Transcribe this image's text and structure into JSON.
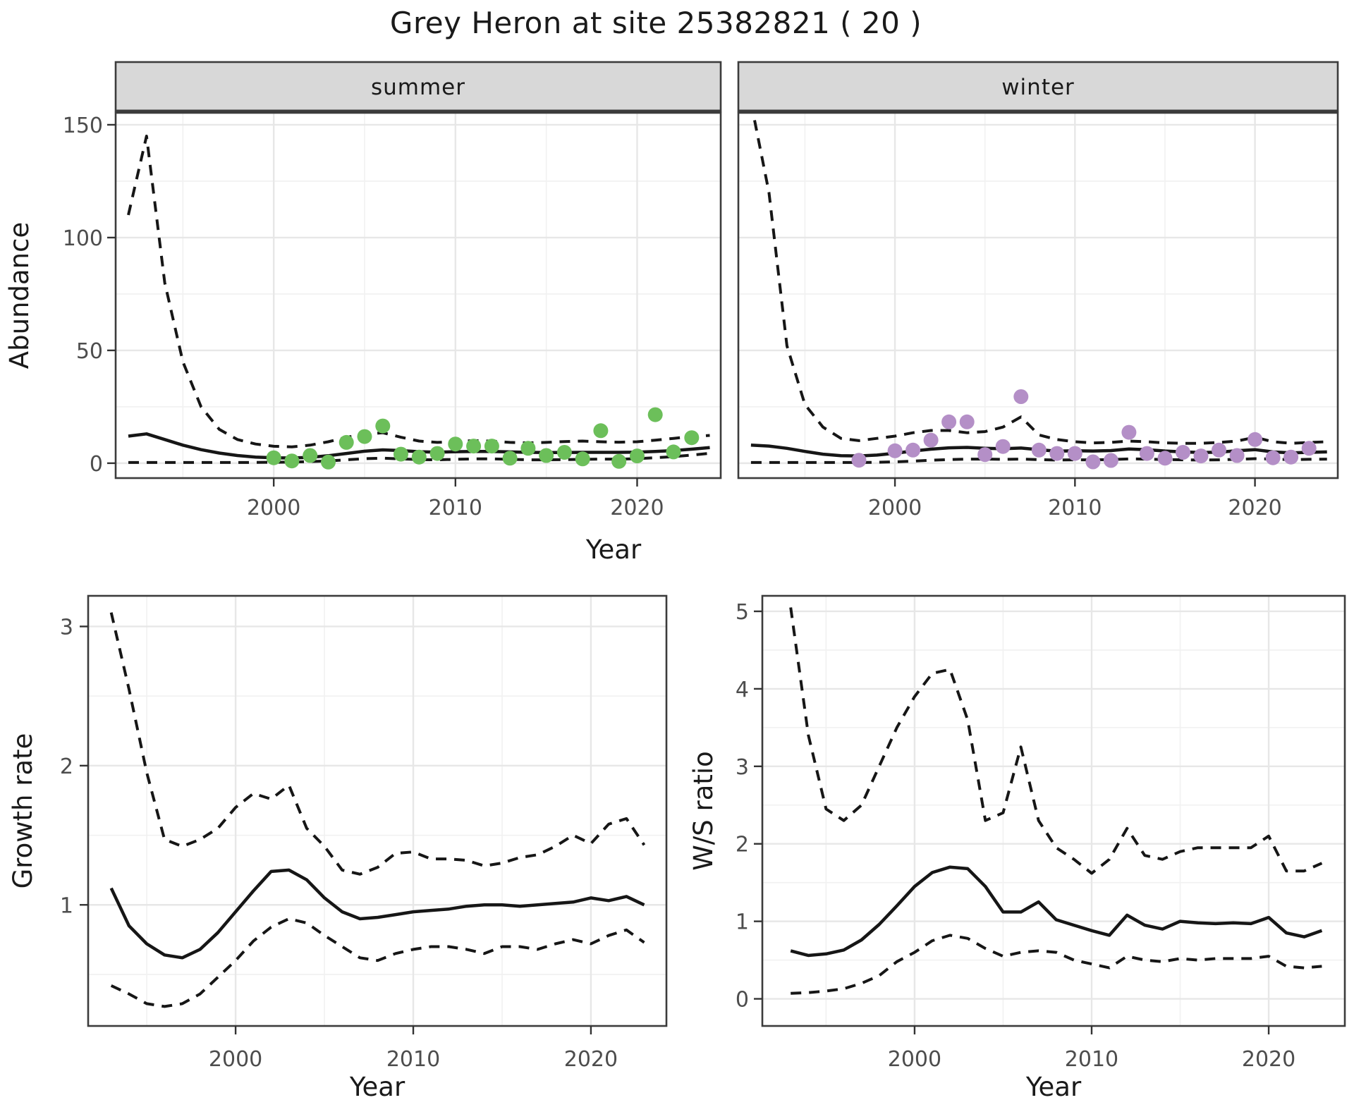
{
  "title": "Grey Heron at site 25382821 ( 20 )",
  "colors": {
    "summer_point": "#6cbf5a",
    "winter_point": "#b48fc7",
    "line": "#161616",
    "strip_bg": "#d8d8d8",
    "panel_border": "#3c3c3c",
    "grid_major": "#e7e7e7",
    "grid_minor": "#f1f1f1",
    "axis_text": "#4d4d4d"
  },
  "chart_data": [
    {
      "id": "abundance",
      "type": "line",
      "xlabel": "Year",
      "ylabel": "Abundance",
      "yticks": [
        0,
        50,
        100,
        150
      ],
      "xticks": [
        2000,
        2010,
        2020
      ],
      "xlim": [
        1991.3,
        2024.6
      ],
      "ylim": [
        -6.6,
        155.3
      ],
      "line_years": [
        1992,
        1993,
        1994,
        1995,
        1996,
        1997,
        1998,
        1999,
        2000,
        2001,
        2002,
        2003,
        2004,
        2005,
        2006,
        2007,
        2008,
        2009,
        2010,
        2011,
        2012,
        2013,
        2014,
        2015,
        2016,
        2017,
        2018,
        2019,
        2020,
        2021,
        2022,
        2023,
        2024
      ],
      "facets": [
        {
          "label": "summer",
          "point_color": "summer_point",
          "fit": [
            12,
            13,
            10.5,
            8,
            6,
            4.5,
            3.4,
            2.7,
            2.4,
            2.3,
            2.6,
            3.3,
            4.3,
            5.3,
            5.9,
            5.6,
            5.1,
            4.9,
            5.1,
            5.2,
            5.2,
            5.0,
            4.8,
            4.7,
            4.7,
            4.8,
            4.8,
            4.8,
            4.9,
            5.2,
            5.6,
            6.2,
            6.9
          ],
          "upper": [
            110,
            145,
            80,
            45,
            25,
            15,
            10.5,
            8.5,
            7.5,
            7.2,
            8,
            9.5,
            11.5,
            12.8,
            13.5,
            11.5,
            9.8,
            9.2,
            9.6,
            10,
            9.8,
            9.2,
            9,
            9.2,
            9.6,
            9.8,
            9.5,
            9.3,
            9.5,
            10.2,
            11,
            11.8,
            12.3
          ],
          "lower": [
            0.3,
            0.3,
            0.3,
            0.3,
            0.3,
            0.3,
            0.3,
            0.35,
            0.4,
            0.5,
            0.7,
            1.0,
            1.5,
            2.0,
            2.2,
            1.9,
            1.6,
            1.5,
            1.7,
            1.9,
            1.9,
            1.7,
            1.5,
            1.5,
            1.6,
            1.7,
            1.8,
            1.8,
            2.0,
            2.4,
            2.9,
            3.6,
            4.4
          ],
          "points": {
            "years": [
              2000,
              2001,
              2002,
              2003,
              2004,
              2005,
              2006,
              2007,
              2008,
              2009,
              2010,
              2011,
              2012,
              2013,
              2014,
              2015,
              2016,
              2017,
              2018,
              2019,
              2020,
              2021,
              2022,
              2023
            ],
            "values": [
              2.4,
              1.0,
              3.4,
              0.5,
              9.2,
              11.8,
              16.5,
              4.0,
              2.7,
              4.3,
              8.5,
              7.6,
              7.6,
              2.2,
              6.6,
              3.4,
              4.8,
              1.9,
              14.4,
              0.8,
              3.2,
              21.5,
              5.0,
              11.3
            ]
          }
        },
        {
          "label": "winter",
          "point_color": "winter_point",
          "fit": [
            8,
            7.6,
            6.6,
            5.2,
            4.0,
            3.3,
            3.2,
            3.6,
            4.4,
            5.4,
            6.2,
            6.8,
            7.0,
            6.6,
            6.4,
            6.7,
            6.0,
            5.3,
            5.5,
            5.4,
            5.6,
            6.3,
            6.0,
            5.4,
            5.0,
            4.7,
            4.9,
            5.5,
            6.0,
            5.0,
            4.6,
            4.8,
            5.0
          ],
          "upper": [
            160,
            120,
            52,
            26,
            16,
            11,
            10,
            11,
            12,
            13.5,
            14.5,
            14.5,
            13.5,
            14,
            16,
            20.5,
            12.5,
            10.5,
            9.5,
            9,
            9.2,
            9.8,
            9.5,
            9,
            8.8,
            8.8,
            9.2,
            9.8,
            11.5,
            9.5,
            8.8,
            9.2,
            9.5
          ],
          "lower": [
            0.3,
            0.3,
            0.3,
            0.3,
            0.3,
            0.3,
            0.3,
            0.4,
            0.6,
            0.9,
            1.3,
            1.6,
            1.8,
            1.8,
            1.7,
            1.8,
            1.6,
            1.4,
            1.5,
            1.5,
            1.6,
            1.9,
            1.8,
            1.6,
            1.5,
            1.4,
            1.5,
            1.7,
            2.0,
            1.8,
            1.6,
            1.7,
            1.8
          ],
          "points": {
            "years": [
              1998,
              2000,
              2001,
              2002,
              2003,
              2004,
              2005,
              2006,
              2007,
              2008,
              2009,
              2010,
              2011,
              2012,
              2013,
              2014,
              2015,
              2016,
              2017,
              2018,
              2019,
              2020,
              2021,
              2022,
              2023
            ],
            "values": [
              1.3,
              5.5,
              5.8,
              10.2,
              18.3,
              18.3,
              3.8,
              7.4,
              29.5,
              5.8,
              4.3,
              4.3,
              0.6,
              1.2,
              13.7,
              4.3,
              2.2,
              4.8,
              3.2,
              5.8,
              3.4,
              10.5,
              2.4,
              2.7,
              6.6
            ]
          }
        }
      ]
    },
    {
      "id": "growth",
      "type": "line",
      "xlabel": "Year",
      "ylabel": "Growth rate",
      "yticks": [
        1,
        2,
        3
      ],
      "xticks": [
        2000,
        2010,
        2020
      ],
      "xlim": [
        1991.7,
        2024.25
      ],
      "ylim": [
        0.13,
        3.22
      ],
      "line_years": [
        1993,
        1994,
        1995,
        1996,
        1997,
        1998,
        1999,
        2000,
        2001,
        2002,
        2003,
        2004,
        2005,
        2006,
        2007,
        2008,
        2009,
        2010,
        2011,
        2012,
        2013,
        2014,
        2015,
        2016,
        2017,
        2018,
        2019,
        2020,
        2021,
        2022,
        2023
      ],
      "facets": [
        {
          "label": null,
          "fit": [
            1.12,
            0.85,
            0.72,
            0.64,
            0.62,
            0.68,
            0.8,
            0.95,
            1.1,
            1.24,
            1.25,
            1.18,
            1.05,
            0.95,
            0.9,
            0.91,
            0.93,
            0.95,
            0.96,
            0.97,
            0.99,
            1.0,
            1.0,
            0.99,
            1.0,
            1.01,
            1.02,
            1.05,
            1.03,
            1.06,
            1.0
          ],
          "upper": [
            3.1,
            2.55,
            1.95,
            1.47,
            1.42,
            1.47,
            1.55,
            1.7,
            1.8,
            1.76,
            1.86,
            1.55,
            1.42,
            1.25,
            1.22,
            1.27,
            1.37,
            1.38,
            1.33,
            1.33,
            1.32,
            1.28,
            1.3,
            1.34,
            1.36,
            1.42,
            1.5,
            1.44,
            1.58,
            1.62,
            1.43
          ],
          "lower": [
            0.42,
            0.36,
            0.29,
            0.27,
            0.29,
            0.36,
            0.48,
            0.6,
            0.74,
            0.84,
            0.9,
            0.87,
            0.78,
            0.7,
            0.62,
            0.6,
            0.65,
            0.68,
            0.7,
            0.7,
            0.68,
            0.65,
            0.7,
            0.7,
            0.68,
            0.72,
            0.75,
            0.72,
            0.78,
            0.82,
            0.73
          ]
        }
      ]
    },
    {
      "id": "ws",
      "type": "line",
      "xlabel": "Year",
      "ylabel": "W/S ratio",
      "yticks": [
        0,
        1,
        2,
        3,
        4,
        5
      ],
      "xticks": [
        2000,
        2010,
        2020
      ],
      "xlim": [
        1991.4,
        2024.3
      ],
      "ylim": [
        -0.35,
        5.2
      ],
      "line_years": [
        1993,
        1994,
        1995,
        1996,
        1997,
        1998,
        1999,
        2000,
        2001,
        2002,
        2003,
        2004,
        2005,
        2006,
        2007,
        2008,
        2009,
        2010,
        2011,
        2012,
        2013,
        2014,
        2015,
        2016,
        2017,
        2018,
        2019,
        2020,
        2021,
        2022,
        2023
      ],
      "facets": [
        {
          "label": null,
          "fit": [
            0.62,
            0.56,
            0.58,
            0.63,
            0.76,
            0.96,
            1.2,
            1.45,
            1.63,
            1.7,
            1.68,
            1.45,
            1.12,
            1.12,
            1.25,
            1.02,
            0.95,
            0.88,
            0.82,
            1.08,
            0.95,
            0.9,
            1.0,
            0.98,
            0.97,
            0.98,
            0.97,
            1.05,
            0.85,
            0.8,
            0.88
          ],
          "upper": [
            5.05,
            3.4,
            2.45,
            2.3,
            2.5,
            3.0,
            3.5,
            3.9,
            4.2,
            4.25,
            3.6,
            2.3,
            2.4,
            3.25,
            2.3,
            1.95,
            1.8,
            1.62,
            1.8,
            2.2,
            1.85,
            1.8,
            1.9,
            1.95,
            1.95,
            1.95,
            1.95,
            2.1,
            1.65,
            1.65,
            1.75
          ],
          "lower": [
            0.07,
            0.08,
            0.1,
            0.13,
            0.2,
            0.3,
            0.48,
            0.6,
            0.75,
            0.82,
            0.78,
            0.65,
            0.55,
            0.6,
            0.62,
            0.6,
            0.5,
            0.45,
            0.4,
            0.55,
            0.5,
            0.48,
            0.52,
            0.5,
            0.52,
            0.52,
            0.52,
            0.55,
            0.42,
            0.4,
            0.42
          ]
        }
      ]
    }
  ]
}
